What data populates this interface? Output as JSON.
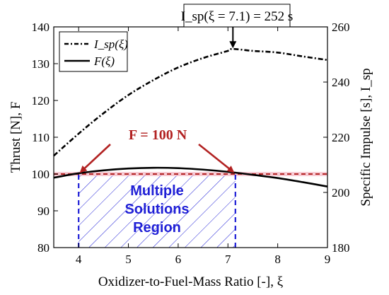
{
  "chart_data": {
    "type": "line",
    "xlabel": "Oxidizer-to-Fuel-Mass Ratio [-], ξ",
    "ylabel_left": "Thrust [N],  F",
    "ylabel_right": "Specific Impulse [s],  I_sp",
    "xlim": [
      3.5,
      9
    ],
    "ylim_left": [
      80,
      140
    ],
    "ylim_right": [
      180,
      260
    ],
    "x_ticks": [
      "4",
      "5",
      "6",
      "7",
      "8",
      "9"
    ],
    "y_ticks_left": [
      "80",
      "90",
      "100",
      "110",
      "120",
      "130",
      "140"
    ],
    "y_ticks_right": [
      "180",
      "200",
      "220",
      "240",
      "260"
    ],
    "grid": false,
    "legend_position": "top-left",
    "series": [
      {
        "name": "I_sp(ξ)",
        "axis": "right",
        "style": "dash-dot",
        "x": [
          3.5,
          4.0,
          4.5,
          5.0,
          5.5,
          6.0,
          6.5,
          7.0,
          7.1,
          7.5,
          8.0,
          8.5,
          9.0
        ],
        "y": [
          213.3,
          221.3,
          228.7,
          235.3,
          240.7,
          245.3,
          248.7,
          251.3,
          252.0,
          251.3,
          250.7,
          249.3,
          248.0
        ]
      },
      {
        "name": "F(ξ)",
        "axis": "left",
        "style": "solid",
        "x": [
          3.5,
          4.0,
          4.5,
          5.0,
          5.5,
          6.0,
          6.5,
          7.0,
          7.5,
          8.0,
          8.5,
          9.0
        ],
        "y": [
          99.0,
          100.2,
          101.0,
          101.5,
          101.7,
          101.6,
          101.2,
          100.6,
          99.8,
          98.9,
          97.8,
          96.6
        ]
      }
    ],
    "reference_line": {
      "y": 100,
      "axis": "left",
      "color": "#b22222",
      "style": "dashed"
    },
    "verticals": [
      {
        "x": 4.0,
        "color": "#1f1fd6",
        "style": "dashed"
      },
      {
        "x": 7.15,
        "color": "#1f1fd6",
        "style": "dashed"
      }
    ],
    "shaded_region": {
      "x": [
        4.0,
        7.15
      ],
      "y": [
        80,
        100
      ],
      "pattern": "hatch",
      "color": "#1f1fd6"
    },
    "annotations": {
      "peak_label": "I_sp(ξ = 7.1) = 252 s",
      "peak_point": {
        "x": 7.1,
        "y": 252,
        "axis": "right"
      },
      "force_label": "F = 100 N",
      "region_label": [
        "Multiple",
        "Solutions",
        "Region"
      ],
      "intersections": [
        {
          "x": 4.0,
          "y": 100
        },
        {
          "x": 7.15,
          "y": 100
        }
      ]
    }
  }
}
